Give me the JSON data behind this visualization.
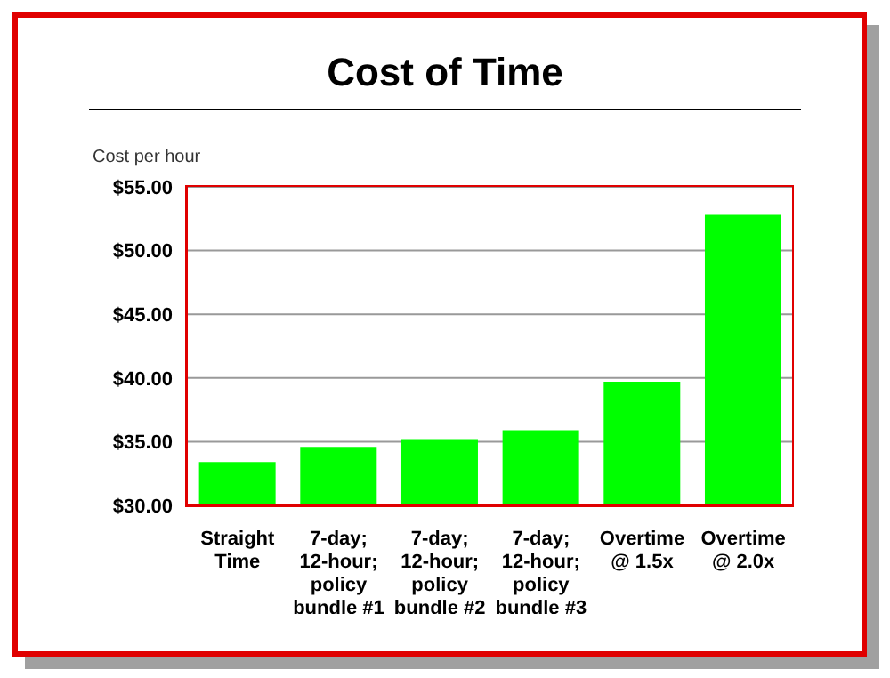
{
  "chart_data": {
    "type": "bar",
    "title": "Cost of Time",
    "ylabel": "Cost per hour",
    "categories": [
      "Straight Time",
      "7-day; 12-hour; policy bundle #1",
      "7-day; 12-hour; policy bundle #2",
      "7-day; 12-hour; policy bundle #3",
      "Overtime @ 1.5x",
      "Overtime @ 2.0x"
    ],
    "values": [
      33.4,
      34.6,
      35.2,
      35.9,
      39.7,
      52.8
    ],
    "color": "#00ff00",
    "ylim": [
      30,
      55
    ],
    "yticks": [
      {
        "value": 30,
        "label": "$30.00"
      },
      {
        "value": 35,
        "label": "$35.00"
      },
      {
        "value": 40,
        "label": "$40.00"
      },
      {
        "value": 45,
        "label": "$45.00"
      },
      {
        "value": 50,
        "label": "$50.00"
      },
      {
        "value": 55,
        "label": "$55.00"
      }
    ],
    "grid": "y",
    "legend": false
  }
}
